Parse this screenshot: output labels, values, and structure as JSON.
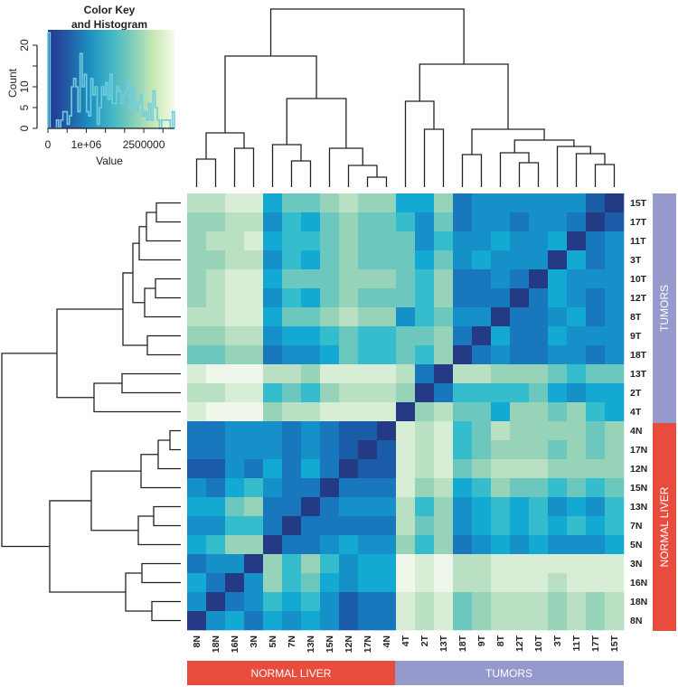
{
  "chart_data": {
    "type": "heatmap",
    "title": "",
    "color_key": {
      "title_line1": "Color Key",
      "title_line2": "and Histogram",
      "ylabel": "Count",
      "xlabel": "Value",
      "x_ticks": [
        "0",
        "1e+06",
        "2500000"
      ],
      "x_tick_values": [
        0,
        1000000,
        2500000
      ],
      "y_ticks": [
        "0",
        "5",
        "10",
        "20"
      ],
      "y_tick_values": [
        0,
        5,
        10,
        20
      ],
      "xlim": [
        0,
        3300000
      ],
      "ylim": [
        0,
        24
      ],
      "histogram_counts": [
        23,
        0,
        0,
        0,
        2,
        0,
        2,
        4,
        4,
        1,
        3,
        10,
        12,
        10,
        4,
        18,
        10,
        13,
        4,
        3,
        12,
        8,
        10,
        1,
        5,
        10,
        8,
        11,
        7,
        13,
        6,
        6,
        10,
        9,
        6,
        8,
        9,
        11,
        5,
        10,
        6,
        4,
        6,
        8,
        3,
        4,
        2,
        6,
        2,
        9,
        5,
        2,
        0,
        2,
        2,
        2,
        2,
        0,
        4
      ],
      "gradient": [
        "#253494",
        "#225ea8",
        "#1d91c0",
        "#41b6c4",
        "#7fcdbb",
        "#c7e9b4",
        "#f4fae8"
      ]
    },
    "columns": [
      "8N",
      "18N",
      "16N",
      "3N",
      "5N",
      "7N",
      "13N",
      "15N",
      "12N",
      "17N",
      "4N",
      "4T",
      "2T",
      "13T",
      "18T",
      "9T",
      "8T",
      "12T",
      "10T",
      "3T",
      "11T",
      "17T",
      "15T"
    ],
    "rows": [
      "15T",
      "17T",
      "11T",
      "3T",
      "10T",
      "12T",
      "8T",
      "9T",
      "18T",
      "13T",
      "2T",
      "4T",
      "4N",
      "17N",
      "12N",
      "15N",
      "13N",
      "7N",
      "5N",
      "3N",
      "16N",
      "18N",
      "8N"
    ],
    "value_scale_note": "levels 0 (darkest, smallest value) to 10 (lightest, largest value)",
    "level_colors": [
      "#243a84",
      "#1b5ca8",
      "#1978bd",
      "#1590c8",
      "#14a9d3",
      "#36bdcd",
      "#6cc7bf",
      "#96d3b9",
      "#b9e0c2",
      "#d7edd5",
      "#eef7e9"
    ],
    "matrix": [
      [
        8,
        8,
        9,
        9,
        4,
        6,
        6,
        7,
        8,
        7,
        7,
        4,
        4,
        7,
        2,
        3,
        3,
        3,
        3,
        3,
        3,
        1,
        0
      ],
      [
        7,
        7,
        8,
        8,
        3,
        5,
        4,
        6,
        7,
        6,
        6,
        5,
        3,
        6,
        2,
        3,
        3,
        2,
        3,
        3,
        2,
        0,
        1
      ],
      [
        7,
        8,
        8,
        9,
        4,
        5,
        5,
        6,
        7,
        6,
        6,
        6,
        3,
        5,
        3,
        3,
        4,
        3,
        3,
        4,
        0,
        2,
        3
      ],
      [
        7,
        7,
        8,
        8,
        3,
        5,
        4,
        6,
        7,
        6,
        6,
        6,
        4,
        6,
        3,
        4,
        3,
        3,
        3,
        0,
        4,
        2,
        3
      ],
      [
        7,
        8,
        9,
        9,
        4,
        6,
        6,
        6,
        7,
        7,
        7,
        6,
        5,
        7,
        2,
        2,
        3,
        2,
        0,
        4,
        3,
        3,
        3
      ],
      [
        7,
        8,
        9,
        9,
        3,
        5,
        4,
        6,
        7,
        6,
        6,
        6,
        5,
        7,
        2,
        2,
        2,
        0,
        2,
        4,
        3,
        2,
        3
      ],
      [
        8,
        8,
        9,
        9,
        4,
        6,
        6,
        7,
        8,
        7,
        7,
        3,
        5,
        6,
        3,
        3,
        0,
        2,
        2,
        3,
        4,
        2,
        3
      ],
      [
        7,
        7,
        8,
        8,
        3,
        4,
        4,
        5,
        6,
        5,
        5,
        6,
        6,
        7,
        2,
        0,
        4,
        2,
        2,
        4,
        3,
        3,
        3
      ],
      [
        6,
        6,
        7,
        7,
        2,
        3,
        3,
        4,
        6,
        5,
        5,
        6,
        5,
        7,
        0,
        2,
        3,
        2,
        2,
        3,
        3,
        2,
        3
      ],
      [
        9,
        10,
        10,
        10,
        8,
        8,
        7,
        9,
        9,
        9,
        9,
        8,
        2,
        0,
        8,
        8,
        7,
        7,
        7,
        6,
        5,
        6,
        6
      ],
      [
        8,
        8,
        9,
        9,
        5,
        6,
        5,
        7,
        8,
        8,
        8,
        7,
        0,
        2,
        5,
        5,
        5,
        5,
        6,
        4,
        3,
        4,
        4
      ],
      [
        9,
        10,
        10,
        10,
        7,
        8,
        8,
        9,
        9,
        9,
        9,
        0,
        7,
        8,
        6,
        6,
        4,
        7,
        7,
        6,
        7,
        5,
        4
      ],
      [
        2,
        2,
        3,
        3,
        3,
        2,
        3,
        2,
        1,
        1,
        0,
        9,
        8,
        9,
        5,
        6,
        8,
        7,
        7,
        7,
        7,
        6,
        7
      ],
      [
        2,
        2,
        3,
        3,
        3,
        2,
        3,
        2,
        1,
        0,
        1,
        9,
        8,
        9,
        5,
        6,
        7,
        7,
        7,
        6,
        7,
        6,
        7
      ],
      [
        1,
        1,
        3,
        2,
        4,
        2,
        4,
        2,
        0,
        1,
        1,
        9,
        8,
        9,
        6,
        7,
        8,
        8,
        8,
        7,
        7,
        7,
        7
      ],
      [
        3,
        2,
        4,
        5,
        3,
        2,
        2,
        0,
        2,
        2,
        2,
        9,
        7,
        8,
        4,
        5,
        7,
        6,
        6,
        5,
        6,
        5,
        6
      ],
      [
        4,
        4,
        6,
        7,
        2,
        2,
        0,
        2,
        3,
        3,
        3,
        8,
        5,
        7,
        3,
        4,
        5,
        4,
        5,
        3,
        4,
        3,
        5
      ],
      [
        3,
        3,
        5,
        5,
        2,
        0,
        2,
        2,
        2,
        2,
        2,
        8,
        6,
        7,
        3,
        4,
        5,
        4,
        5,
        4,
        5,
        4,
        5
      ],
      [
        4,
        5,
        7,
        7,
        0,
        2,
        2,
        3,
        4,
        3,
        3,
        7,
        5,
        7,
        2,
        3,
        4,
        3,
        4,
        3,
        3,
        3,
        4
      ],
      [
        2,
        3,
        3,
        0,
        7,
        5,
        7,
        5,
        3,
        4,
        4,
        10,
        9,
        10,
        8,
        8,
        9,
        9,
        9,
        9,
        9,
        9,
        9
      ],
      [
        4,
        2,
        0,
        3,
        7,
        5,
        6,
        4,
        3,
        4,
        4,
        10,
        9,
        10,
        8,
        8,
        9,
        9,
        9,
        8,
        9,
        9,
        9
      ],
      [
        3,
        0,
        2,
        3,
        5,
        4,
        5,
        3,
        1,
        2,
        2,
        9,
        8,
        9,
        6,
        7,
        8,
        8,
        8,
        7,
        8,
        7,
        8
      ],
      [
        0,
        3,
        4,
        2,
        4,
        3,
        4,
        3,
        1,
        2,
        2,
        9,
        8,
        9,
        6,
        7,
        8,
        8,
        8,
        7,
        8,
        7,
        8
      ]
    ],
    "groups": {
      "normal": {
        "label": "NORMAL LIVER",
        "color": "#e84c3d"
      },
      "tumor": {
        "label": "TUMORS",
        "color": "#9599cc"
      }
    },
    "legend_placement": "top-left"
  }
}
